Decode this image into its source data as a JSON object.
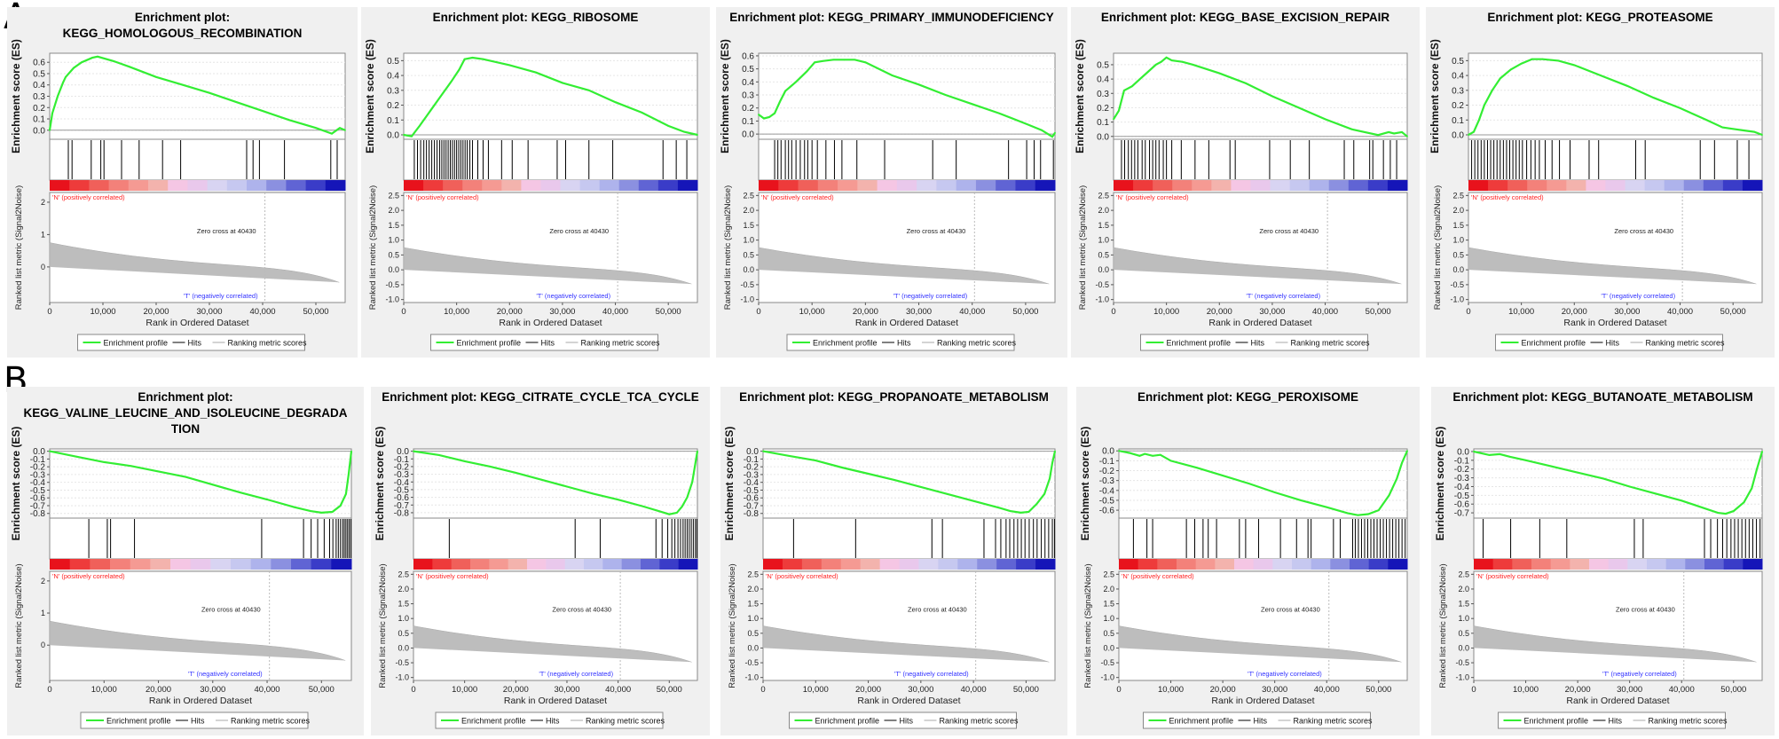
{
  "panel_letters": [
    "A",
    "B"
  ],
  "common": {
    "es_ylabel": "Enrichment score (ES)",
    "metric_ylabel": "Ranked list metric (Signal2Noise)",
    "xlabel": "Rank in Ordered Dataset",
    "pos_label": "'N' (positively correlated)",
    "neg_label": "'T' (negatively correlated)",
    "zero_cross": "Zero cross at 40430",
    "legend": [
      "Enrichment profile",
      "Hits",
      "Ranking metric scores"
    ],
    "x_ticks": [
      "0",
      "10,000",
      "20,000",
      "30,000",
      "40,000",
      "50,000"
    ],
    "metric_ticks_full": [
      "2.5",
      "2.0",
      "1.5",
      "1.0",
      "0.5",
      "0.0",
      "-0.5",
      "-1.0"
    ],
    "metric_ticks_short": [
      "2",
      "1",
      "0"
    ]
  },
  "colors": {
    "curve": "#33ee33",
    "hit": "#000000",
    "metric": "#bdbdbd",
    "pos_text": "#ff2222",
    "neg_text": "#3333ff",
    "panel_bg": "#f0f0f0"
  },
  "chart_data": [
    {
      "type": "line",
      "row": "A",
      "title": "Enrichment plot:\nKEGG_HOMOLOGOUS_RECOMBINATION",
      "es_ticks": [
        "0.0",
        "0.1",
        "0.2",
        "0.3",
        "0.4",
        "0.5",
        "0.6"
      ],
      "es_range": [
        -0.08,
        0.68
      ],
      "x": [
        0,
        500,
        1500,
        2500,
        3000,
        4500,
        6000,
        7000,
        8000,
        9000,
        12000,
        15000,
        20000,
        25000,
        30000,
        35000,
        40000,
        45000,
        50000,
        53000,
        54500,
        55500
      ],
      "y": [
        0,
        0.15,
        0.3,
        0.42,
        0.47,
        0.55,
        0.6,
        0.62,
        0.64,
        0.65,
        0.61,
        0.56,
        0.47,
        0.4,
        0.33,
        0.25,
        0.17,
        0.09,
        0.02,
        -0.03,
        0.02,
        0
      ],
      "hits": [
        3500,
        4200,
        7800,
        9600,
        10200,
        13500,
        16800,
        21200,
        24600,
        37000,
        38200,
        39400,
        44100,
        52800,
        54000
      ],
      "metric_ticks": "short"
    },
    {
      "type": "line",
      "row": "A",
      "title": "Enrichment plot: KEGG_RIBOSOME",
      "es_ticks": [
        "0.0",
        "0.1",
        "0.2",
        "0.3",
        "0.4",
        "0.5"
      ],
      "es_range": [
        -0.03,
        0.55
      ],
      "x": [
        0,
        1500,
        3000,
        5000,
        7000,
        9000,
        10500,
        11500,
        13000,
        15000,
        20000,
        25000,
        30000,
        35000,
        40000,
        45000,
        50000,
        53000,
        55500
      ],
      "y": [
        0,
        -0.01,
        0.06,
        0.16,
        0.26,
        0.36,
        0.44,
        0.51,
        0.52,
        0.51,
        0.47,
        0.42,
        0.35,
        0.3,
        0.22,
        0.15,
        0.06,
        0.02,
        0
      ],
      "hits": [
        2000,
        2600,
        3200,
        3800,
        4300,
        4800,
        5300,
        5800,
        6300,
        6800,
        7200,
        7600,
        8000,
        8400,
        8800,
        9200,
        9600,
        10000,
        10400,
        10800,
        11200,
        11600,
        12000,
        12500,
        13000,
        14000,
        15000,
        16000,
        18500,
        20500,
        23500,
        29000,
        30600,
        35000,
        39500,
        49000,
        51500,
        53500
      ],
      "metric_ticks": "full"
    },
    {
      "type": "line",
      "row": "A",
      "title": "Enrichment plot: KEGG_PRIMARY_IMMUNODEFICIENCY",
      "es_ticks": [
        "0.0",
        "0.1",
        "0.2",
        "0.3",
        "0.4",
        "0.5",
        "0.6"
      ],
      "es_range": [
        -0.04,
        0.62
      ],
      "x": [
        0,
        1000,
        2000,
        3000,
        4000,
        5000,
        7000,
        9000,
        10500,
        12000,
        14000,
        16000,
        18000,
        20000,
        25000,
        30000,
        35000,
        40000,
        45000,
        50000,
        53000,
        55000,
        55500
      ],
      "y": [
        0.15,
        0.12,
        0.13,
        0.16,
        0.25,
        0.33,
        0.4,
        0.48,
        0.55,
        0.56,
        0.57,
        0.57,
        0.57,
        0.55,
        0.45,
        0.38,
        0.3,
        0.23,
        0.16,
        0.08,
        0.03,
        -0.02,
        0.01
      ],
      "hits": [
        3000,
        3600,
        4200,
        5000,
        5600,
        6200,
        7000,
        7800,
        8600,
        9200,
        10000,
        11000,
        12600,
        14200,
        15600,
        18400,
        23600,
        32600,
        37000,
        46800,
        50200,
        51600,
        52800,
        55200
      ],
      "metric_ticks": "full"
    },
    {
      "type": "line",
      "row": "A",
      "title": "Enrichment plot: KEGG_BASE_EXCISION_REPAIR",
      "es_ticks": [
        "0.0",
        "0.1",
        "0.2",
        "0.3",
        "0.4",
        "0.5"
      ],
      "es_range": [
        -0.02,
        0.58
      ],
      "x": [
        0,
        1000,
        2000,
        3500,
        5000,
        6500,
        8000,
        9000,
        10000,
        11000,
        13000,
        15000,
        20000,
        25000,
        30000,
        35000,
        40000,
        45000,
        50000,
        52000,
        53000,
        54500,
        55500
      ],
      "y": [
        0.12,
        0.18,
        0.32,
        0.35,
        0.4,
        0.45,
        0.5,
        0.52,
        0.55,
        0.53,
        0.52,
        0.5,
        0.44,
        0.37,
        0.28,
        0.2,
        0.12,
        0.05,
        0.01,
        0.03,
        0.02,
        0.03,
        0
      ],
      "hits": [
        1500,
        2100,
        2800,
        3400,
        4000,
        4600,
        5400,
        6000,
        6800,
        7400,
        8000,
        8600,
        9400,
        10000,
        11000,
        12800,
        15400,
        18000,
        22000,
        23000,
        29500,
        33400,
        37000,
        43600,
        45400,
        48400,
        49000,
        51000,
        52300,
        53500
      ],
      "metric_ticks": "full"
    },
    {
      "type": "line",
      "row": "A",
      "title": "Enrichment plot: KEGG_PROTEASOME",
      "es_ticks": [
        "0.0",
        "0.1",
        "0.2",
        "0.3",
        "0.4",
        "0.5"
      ],
      "es_range": [
        -0.03,
        0.55
      ],
      "x": [
        0,
        1000,
        2000,
        3000,
        4500,
        6000,
        8000,
        10000,
        12000,
        14000,
        17000,
        20000,
        25000,
        30000,
        35000,
        40000,
        45000,
        48000,
        50000,
        52000,
        54000,
        55500
      ],
      "y": [
        0,
        0.02,
        0.1,
        0.2,
        0.3,
        0.38,
        0.44,
        0.48,
        0.51,
        0.51,
        0.5,
        0.47,
        0.4,
        0.33,
        0.25,
        0.18,
        0.1,
        0.05,
        0.04,
        0.03,
        0.02,
        0
      ],
      "hits": [
        600,
        1200,
        1800,
        2400,
        3000,
        3600,
        4200,
        4800,
        5400,
        6000,
        6600,
        7200,
        7800,
        8400,
        9000,
        9600,
        10200,
        11000,
        11800,
        12600,
        13400,
        14500,
        15800,
        17200,
        19200,
        22800,
        24600,
        31600,
        33400,
        43800,
        46500,
        50800,
        53000
      ],
      "metric_ticks": "full"
    },
    {
      "type": "line",
      "row": "B",
      "title": "Enrichment plot:\nKEGG_VALINE_LEUCINE_AND_ISOLEUCINE_DEGRADA\nTION",
      "es_ticks": [
        "0.0",
        "-0.1",
        "-0.2",
        "-0.3",
        "-0.4",
        "-0.5",
        "-0.6",
        "-0.7",
        "-0.8"
      ],
      "es_range": [
        -0.86,
        0.03
      ],
      "x": [
        0,
        5000,
        10000,
        15000,
        20000,
        25000,
        30000,
        35000,
        40000,
        45000,
        48000,
        50000,
        52000,
        53500,
        54500,
        55000,
        55500
      ],
      "y": [
        0,
        -0.07,
        -0.14,
        -0.19,
        -0.26,
        -0.33,
        -0.43,
        -0.53,
        -0.62,
        -0.72,
        -0.77,
        -0.79,
        -0.78,
        -0.7,
        -0.55,
        -0.3,
        0
      ],
      "hits": [
        7200,
        10600,
        11200,
        15600,
        39000,
        46700,
        48100,
        49300,
        50500,
        51500,
        52100,
        52700,
        53100,
        53500,
        53900,
        54200,
        54500,
        54800,
        55100,
        55400
      ],
      "metric_ticks": "short"
    },
    {
      "type": "line",
      "row": "B",
      "title": "Enrichment plot: KEGG_CITRATE_CYCLE_TCA_CYCLE",
      "es_ticks": [
        "0.0",
        "-0.1",
        "-0.2",
        "-0.3",
        "-0.4",
        "-0.5",
        "-0.6",
        "-0.7",
        "-0.8"
      ],
      "es_range": [
        -0.87,
        0.03
      ],
      "x": [
        0,
        5000,
        10000,
        15000,
        20000,
        25000,
        30000,
        35000,
        40000,
        45000,
        48000,
        50000,
        51500,
        52500,
        53500,
        54500,
        55000,
        55500
      ],
      "y": [
        0,
        -0.05,
        -0.13,
        -0.2,
        -0.28,
        -0.37,
        -0.46,
        -0.55,
        -0.63,
        -0.72,
        -0.78,
        -0.82,
        -0.8,
        -0.72,
        -0.6,
        -0.4,
        -0.2,
        0
      ],
      "hits": [
        7000,
        31600,
        36500,
        47400,
        48600,
        49700,
        50500,
        51100,
        51700,
        52200,
        52700,
        53100,
        53500,
        53900,
        54300,
        54700,
        55100,
        55400
      ],
      "metric_ticks": "full"
    },
    {
      "type": "line",
      "row": "B",
      "title": "Enrichment plot: KEGG_PROPANOATE_METABOLISM",
      "es_ticks": [
        "0.0",
        "-0.1",
        "-0.2",
        "-0.3",
        "-0.4",
        "-0.5",
        "-0.6",
        "-0.7",
        "-0.8"
      ],
      "es_range": [
        -0.86,
        0.03
      ],
      "x": [
        0,
        5000,
        10000,
        15000,
        20000,
        25000,
        30000,
        35000,
        40000,
        45000,
        47000,
        49000,
        50500,
        52000,
        53500,
        54500,
        55000,
        55500
      ],
      "y": [
        0,
        -0.06,
        -0.12,
        -0.21,
        -0.29,
        -0.37,
        -0.46,
        -0.55,
        -0.64,
        -0.73,
        -0.77,
        -0.79,
        -0.78,
        -0.68,
        -0.55,
        -0.35,
        -0.15,
        0
      ],
      "hits": [
        5800,
        17600,
        32100,
        34100,
        42000,
        44200,
        45200,
        46200,
        46900,
        47700,
        48400,
        49100,
        49800,
        50600,
        51400,
        52100,
        52900,
        53600,
        54300,
        55000,
        55400
      ],
      "metric_ticks": "full"
    },
    {
      "type": "line",
      "row": "B",
      "title": "Enrichment plot: KEGG_PEROXISOME",
      "es_ticks": [
        "0.0",
        "-0.1",
        "-0.2",
        "-0.3",
        "-0.4",
        "-0.5",
        "-0.6"
      ],
      "es_range": [
        -0.68,
        0.02
      ],
      "x": [
        0,
        2000,
        4000,
        5000,
        6500,
        8000,
        10000,
        15000,
        20000,
        25000,
        30000,
        35000,
        40000,
        44000,
        46000,
        48000,
        50000,
        52000,
        53500,
        54500,
        55500
      ],
      "y": [
        0,
        -0.02,
        -0.05,
        -0.03,
        -0.05,
        -0.04,
        -0.1,
        -0.17,
        -0.25,
        -0.33,
        -0.42,
        -0.5,
        -0.57,
        -0.63,
        -0.65,
        -0.64,
        -0.6,
        -0.45,
        -0.28,
        -0.12,
        0
      ],
      "hits": [
        2800,
        5400,
        6500,
        13000,
        14600,
        16200,
        17200,
        18800,
        23200,
        24400,
        26900,
        31100,
        34200,
        36400,
        37000,
        41300,
        42600,
        45000,
        45500,
        46100,
        46700,
        47300,
        47900,
        48500,
        49100,
        49700,
        50300,
        50900,
        51500,
        52100,
        52700,
        53300,
        53900,
        54500,
        55100
      ],
      "metric_ticks": "full"
    },
    {
      "type": "line",
      "row": "B",
      "title": "Enrichment plot: KEGG_BUTANOATE_METABOLISM",
      "es_ticks": [
        "0.0",
        "-0.1",
        "-0.2",
        "-0.3",
        "-0.4",
        "-0.5",
        "-0.6",
        "-0.7"
      ],
      "es_range": [
        -0.76,
        0.03
      ],
      "x": [
        0,
        3000,
        5000,
        7000,
        10000,
        15000,
        20000,
        25000,
        30000,
        35000,
        40000,
        44000,
        47000,
        48500,
        50000,
        52000,
        53500,
        54500,
        55500
      ],
      "y": [
        0,
        -0.04,
        -0.03,
        -0.06,
        -0.1,
        -0.17,
        -0.24,
        -0.31,
        -0.4,
        -0.48,
        -0.56,
        -0.64,
        -0.7,
        -0.71,
        -0.68,
        -0.58,
        -0.42,
        -0.2,
        0
      ],
      "hits": [
        1800,
        7100,
        12700,
        17900,
        30900,
        32600,
        44400,
        45600,
        46900,
        47900,
        48700,
        49500,
        50200,
        50900,
        51600,
        52300,
        53000,
        53700,
        54400,
        55100
      ],
      "metric_ticks": "full"
    }
  ]
}
